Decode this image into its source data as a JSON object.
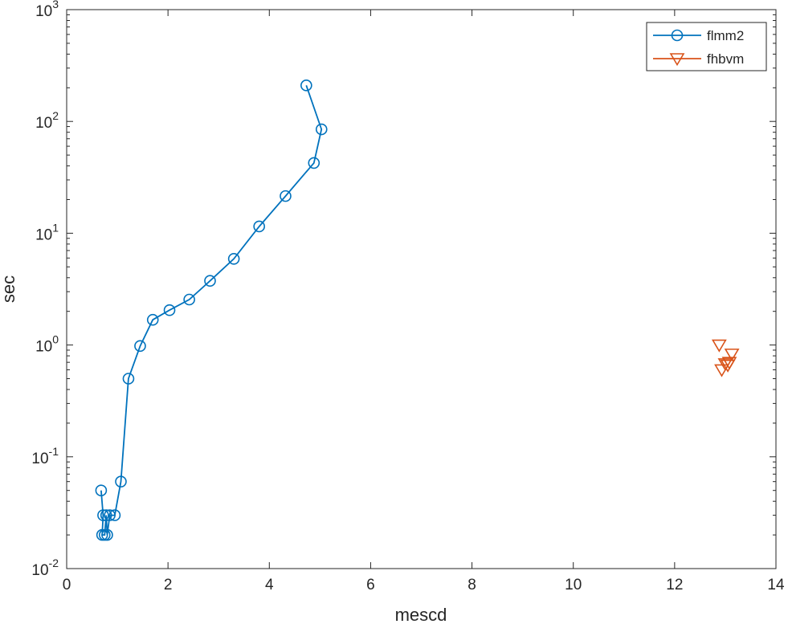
{
  "chart_data": {
    "type": "line",
    "xlabel": "mescd",
    "ylabel": "sec",
    "xlim": [
      0,
      14
    ],
    "ylim": [
      0.01,
      1000
    ],
    "yscale": "log",
    "grid": false,
    "legend_position": "top-right",
    "x_ticks": [
      "0",
      "2",
      "4",
      "6",
      "8",
      "10",
      "12",
      "14"
    ],
    "y_ticks": [
      {
        "base": "10",
        "exp": "-2",
        "value": 0.01
      },
      {
        "base": "10",
        "exp": "-1",
        "value": 0.1
      },
      {
        "base": "10",
        "exp": "0",
        "value": 1
      },
      {
        "base": "10",
        "exp": "1",
        "value": 10
      },
      {
        "base": "10",
        "exp": "2",
        "value": 100
      },
      {
        "base": "10",
        "exp": "3",
        "value": 1000
      }
    ],
    "series": [
      {
        "name": "flmm2",
        "color": "#0072bd",
        "marker": "circle",
        "line": true,
        "x": [
          0.68,
          0.72,
          0.7,
          0.75,
          0.78,
          0.8,
          0.85,
          0.95,
          1.07,
          1.22,
          1.45,
          1.7,
          2.03,
          2.42,
          2.83,
          3.3,
          3.8,
          4.32,
          4.88,
          5.03,
          4.73
        ],
        "y": [
          0.05,
          0.03,
          0.02,
          0.02,
          0.03,
          0.02,
          0.03,
          0.03,
          0.06,
          0.5,
          0.98,
          1.68,
          2.05,
          2.55,
          3.75,
          5.9,
          11.5,
          21.5,
          42.5,
          85,
          210
        ]
      },
      {
        "name": "fhbvm",
        "color": "#d95319",
        "marker": "triangle-down",
        "line": false,
        "x": [
          12.88,
          12.93,
          13.0,
          13.05,
          13.08,
          13.13
        ],
        "y": [
          1.0,
          0.6,
          0.68,
          0.66,
          0.7,
          0.83
        ]
      }
    ]
  }
}
